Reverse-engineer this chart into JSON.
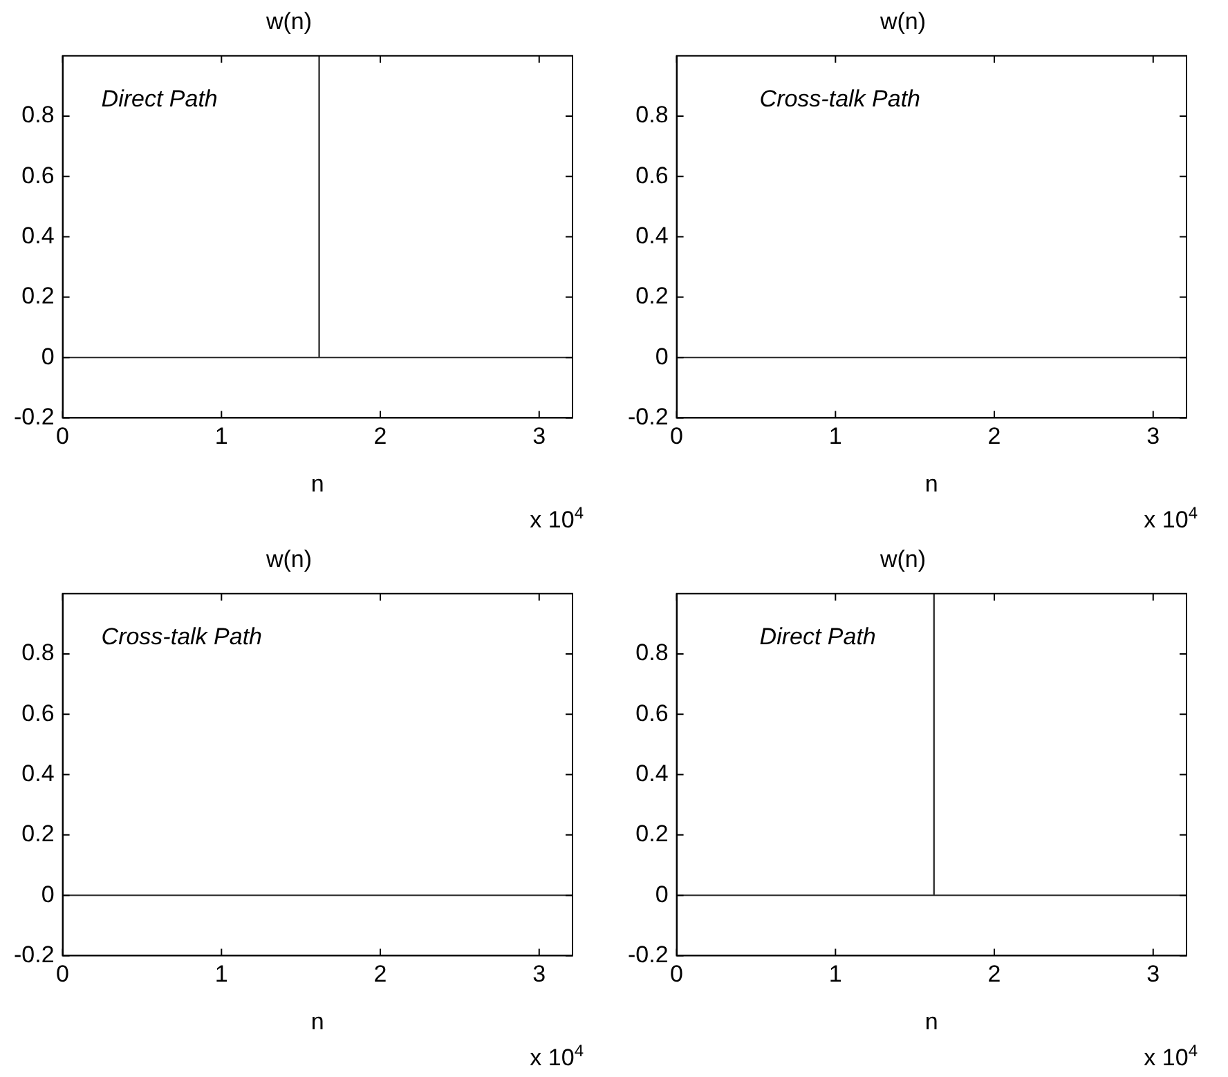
{
  "chart_data": [
    {
      "type": "line",
      "title": "w(n)",
      "xlabel": "n",
      "annotations": [
        "Direct Path",
        "x 10$^{4}$"
      ],
      "series": [
        {
          "color": "#333333",
          "x": [
            0,
            1.615,
            1.615,
            1.615,
            3.21
          ],
          "values": [
            0,
            0,
            1,
            0,
            0
          ]
        }
      ],
      "xlim": [
        0,
        3.21
      ],
      "ylim": [
        -0.2,
        1
      ],
      "xticks": [
        0,
        1,
        2,
        3
      ],
      "yticks": [
        -0.2,
        0,
        0.2,
        0.4,
        0.6,
        0.8
      ],
      "grid": false,
      "legend": false,
      "marker": "none",
      "line_style": "solid"
    },
    {
      "type": "line",
      "title": "w(n)",
      "xlabel": "n",
      "annotations": [
        "Cross-talk Path",
        "x 10$^{4}$"
      ],
      "series": [
        {
          "color": "#333333",
          "x": [
            0,
            3.21
          ],
          "values": [
            0,
            0
          ]
        }
      ],
      "xlim": [
        0,
        3.21
      ],
      "ylim": [
        -0.2,
        1
      ],
      "xticks": [
        0,
        1,
        2,
        3
      ],
      "yticks": [
        -0.2,
        0,
        0.2,
        0.4,
        0.6,
        0.8
      ],
      "grid": false,
      "legend": false,
      "marker": "none",
      "line_style": "solid"
    },
    {
      "type": "line",
      "title": "w(n)",
      "xlabel": "n",
      "annotations": [
        "Cross-talk Path",
        "x 10$^{4}$"
      ],
      "series": [
        {
          "color": "#333333",
          "x": [
            0,
            3.21
          ],
          "values": [
            0,
            0
          ]
        }
      ],
      "xlim": [
        0,
        3.21
      ],
      "ylim": [
        -0.2,
        1
      ],
      "xticks": [
        0,
        1,
        2,
        3
      ],
      "yticks": [
        -0.2,
        0,
        0.2,
        0.4,
        0.6,
        0.8
      ],
      "grid": false,
      "legend": false,
      "marker": "none",
      "line_style": "solid"
    },
    {
      "type": "line",
      "title": "w(n)",
      "xlabel": "n",
      "annotations": [
        "Direct Path",
        "x 10$^{4}$"
      ],
      "series": [
        {
          "color": "#333333",
          "x": [
            0,
            1.62,
            1.62,
            1.62,
            3.21
          ],
          "values": [
            0,
            0,
            1,
            0,
            0
          ]
        }
      ],
      "xlim": [
        0,
        3.21
      ],
      "ylim": [
        -0.2,
        1
      ],
      "xticks": [
        0,
        1,
        2,
        3
      ],
      "yticks": [
        -0.2,
        0,
        0.2,
        0.4,
        0.6,
        0.8
      ],
      "grid": false,
      "legend": false,
      "marker": "none",
      "line_style": "solid"
    }
  ]
}
